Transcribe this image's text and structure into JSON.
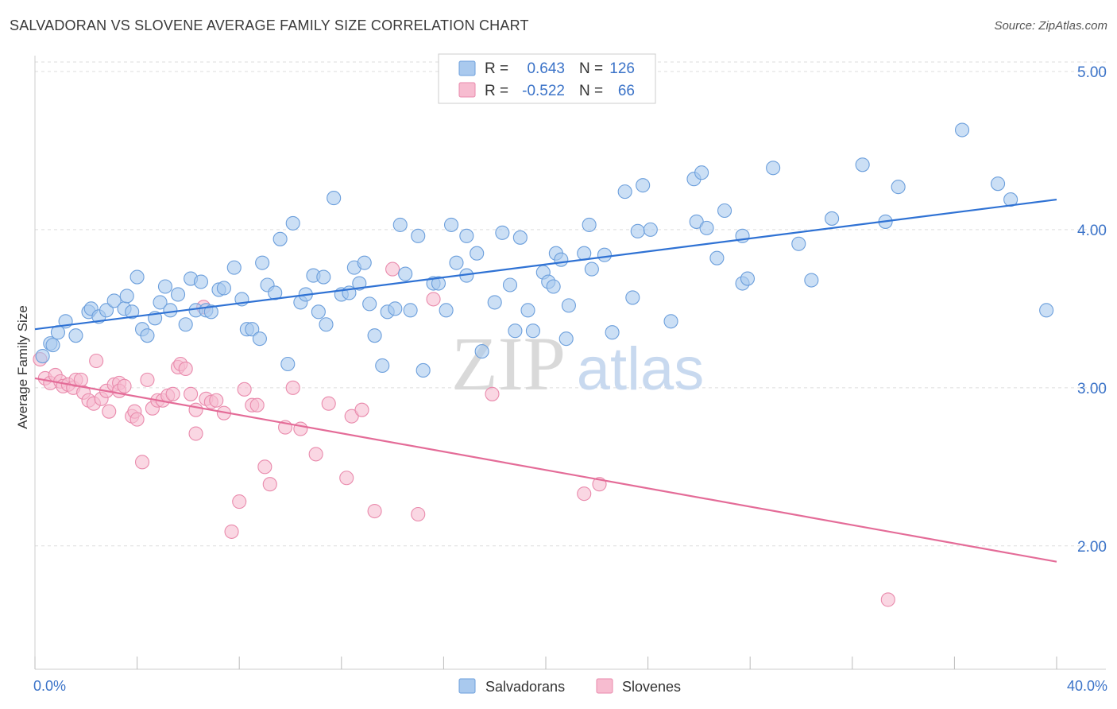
{
  "title": "SALVADORAN VS SLOVENE AVERAGE FAMILY SIZE CORRELATION CHART",
  "source": "Source: ZipAtlas.com",
  "watermark": {
    "zip": "ZIP",
    "atlas": "atlas"
  },
  "colors": {
    "blue_fill": "#a9c9ee",
    "blue_stroke": "#6c9fdc",
    "blue_line": "#2f72d4",
    "pink_fill": "#f7bcd0",
    "pink_stroke": "#e98aac",
    "pink_line": "#e46c98",
    "value_text": "#3b73c8",
    "grid": "#dddddd"
  },
  "stats_legend": {
    "rows": [
      {
        "r_label": "R =",
        "r_value": "0.643",
        "n_label": "N =",
        "n_value": "126"
      },
      {
        "r_label": "R =",
        "r_value": "-0.522",
        "n_label": "N =",
        "n_value": "66"
      }
    ]
  },
  "bottom_legend": [
    {
      "label": "Salvadorans"
    },
    {
      "label": "Slovenes"
    }
  ],
  "chart_data": {
    "type": "scatter",
    "title": "SALVADORAN VS SLOVENE AVERAGE FAMILY SIZE CORRELATION CHART",
    "xlabel": "",
    "ylabel": "Average Family Size",
    "xlim": [
      0,
      40
    ],
    "ylim": [
      1.22,
      5.1
    ],
    "x_tick_labels": [
      "0.0%",
      "40.0%"
    ],
    "y_ticks": [
      2.0,
      3.0,
      4.0,
      5.0
    ],
    "y_tick_labels": [
      "2.00",
      "3.00",
      "4.00",
      "5.00"
    ],
    "grid": true,
    "legend_position": "top-center",
    "series": [
      {
        "name": "Salvadorans",
        "color": "#a9c9ee",
        "trend": {
          "x": [
            0,
            40
          ],
          "y": [
            3.37,
            4.19
          ]
        },
        "points": [
          [
            0.3,
            3.2
          ],
          [
            0.6,
            3.28
          ],
          [
            0.7,
            3.27
          ],
          [
            0.9,
            3.35
          ],
          [
            1.2,
            3.42
          ],
          [
            1.6,
            3.33
          ],
          [
            2.1,
            3.48
          ],
          [
            2.2,
            3.5
          ],
          [
            2.5,
            3.45
          ],
          [
            2.8,
            3.49
          ],
          [
            3.1,
            3.55
          ],
          [
            3.5,
            3.5
          ],
          [
            3.6,
            3.58
          ],
          [
            3.8,
            3.48
          ],
          [
            4.0,
            3.7
          ],
          [
            4.2,
            3.37
          ],
          [
            4.4,
            3.33
          ],
          [
            4.7,
            3.44
          ],
          [
            4.9,
            3.54
          ],
          [
            5.1,
            3.64
          ],
          [
            5.3,
            3.49
          ],
          [
            5.6,
            3.59
          ],
          [
            5.9,
            3.4
          ],
          [
            6.1,
            3.69
          ],
          [
            6.3,
            3.49
          ],
          [
            6.5,
            3.67
          ],
          [
            6.7,
            3.49
          ],
          [
            6.9,
            3.48
          ],
          [
            7.2,
            3.62
          ],
          [
            7.4,
            3.63
          ],
          [
            7.8,
            3.76
          ],
          [
            8.1,
            3.56
          ],
          [
            8.3,
            3.37
          ],
          [
            8.5,
            3.37
          ],
          [
            8.8,
            3.31
          ],
          [
            8.9,
            3.79
          ],
          [
            9.1,
            3.65
          ],
          [
            9.4,
            3.6
          ],
          [
            9.6,
            3.94
          ],
          [
            9.9,
            3.15
          ],
          [
            10.1,
            4.04
          ],
          [
            10.4,
            3.54
          ],
          [
            10.6,
            3.59
          ],
          [
            10.9,
            3.71
          ],
          [
            11.1,
            3.48
          ],
          [
            11.3,
            3.7
          ],
          [
            11.4,
            3.4
          ],
          [
            11.7,
            4.2
          ],
          [
            12.0,
            3.59
          ],
          [
            12.3,
            3.6
          ],
          [
            12.5,
            3.76
          ],
          [
            12.7,
            3.66
          ],
          [
            12.9,
            3.79
          ],
          [
            13.1,
            3.53
          ],
          [
            13.3,
            3.33
          ],
          [
            13.6,
            3.14
          ],
          [
            13.8,
            3.48
          ],
          [
            14.1,
            3.5
          ],
          [
            14.3,
            4.03
          ],
          [
            14.5,
            3.72
          ],
          [
            14.7,
            3.49
          ],
          [
            15.0,
            3.96
          ],
          [
            15.2,
            3.11
          ],
          [
            15.6,
            3.66
          ],
          [
            15.8,
            3.66
          ],
          [
            16.1,
            3.49
          ],
          [
            16.3,
            4.03
          ],
          [
            16.5,
            3.79
          ],
          [
            16.9,
            3.96
          ],
          [
            16.9,
            3.71
          ],
          [
            17.3,
            3.85
          ],
          [
            17.5,
            3.23
          ],
          [
            18.0,
            3.54
          ],
          [
            18.3,
            3.98
          ],
          [
            18.6,
            3.65
          ],
          [
            18.8,
            3.36
          ],
          [
            19.0,
            3.95
          ],
          [
            19.3,
            3.49
          ],
          [
            19.5,
            3.36
          ],
          [
            19.9,
            3.73
          ],
          [
            20.1,
            3.67
          ],
          [
            20.3,
            3.64
          ],
          [
            20.4,
            3.85
          ],
          [
            20.6,
            3.81
          ],
          [
            20.8,
            3.31
          ],
          [
            20.9,
            3.52
          ],
          [
            21.5,
            3.85
          ],
          [
            21.7,
            4.03
          ],
          [
            21.8,
            3.75
          ],
          [
            22.3,
            3.84
          ],
          [
            22.6,
            3.35
          ],
          [
            23.1,
            4.24
          ],
          [
            23.4,
            3.57
          ],
          [
            23.6,
            3.99
          ],
          [
            23.8,
            4.28
          ],
          [
            24.1,
            4.0
          ],
          [
            24.9,
            3.42
          ],
          [
            25.8,
            4.32
          ],
          [
            25.9,
            4.05
          ],
          [
            26.1,
            4.36
          ],
          [
            26.3,
            4.01
          ],
          [
            26.7,
            3.82
          ],
          [
            27.0,
            4.12
          ],
          [
            27.7,
            3.66
          ],
          [
            27.7,
            3.96
          ],
          [
            27.9,
            3.69
          ],
          [
            28.9,
            4.39
          ],
          [
            29.9,
            3.91
          ],
          [
            30.4,
            3.68
          ],
          [
            31.2,
            4.07
          ],
          [
            32.4,
            4.41
          ],
          [
            33.3,
            4.05
          ],
          [
            33.8,
            4.27
          ],
          [
            36.3,
            4.63
          ],
          [
            37.7,
            4.29
          ],
          [
            38.2,
            4.19
          ],
          [
            39.6,
            3.49
          ]
        ]
      },
      {
        "name": "Slovenes",
        "color": "#f7bcd0",
        "trend": {
          "x": [
            0,
            40
          ],
          "y": [
            3.06,
            1.9
          ]
        },
        "points": [
          [
            0.2,
            3.18
          ],
          [
            0.4,
            3.06
          ],
          [
            0.6,
            3.03
          ],
          [
            0.8,
            3.08
          ],
          [
            1.0,
            3.04
          ],
          [
            1.1,
            3.01
          ],
          [
            1.3,
            3.02
          ],
          [
            1.5,
            3.0
          ],
          [
            1.6,
            3.05
          ],
          [
            1.8,
            3.05
          ],
          [
            1.9,
            2.97
          ],
          [
            2.1,
            2.92
          ],
          [
            2.3,
            2.9
          ],
          [
            2.4,
            3.17
          ],
          [
            2.6,
            2.93
          ],
          [
            2.8,
            2.98
          ],
          [
            2.9,
            2.85
          ],
          [
            3.1,
            3.02
          ],
          [
            3.3,
            3.03
          ],
          [
            3.3,
            2.98
          ],
          [
            3.5,
            3.01
          ],
          [
            3.8,
            2.82
          ],
          [
            3.9,
            2.85
          ],
          [
            4.0,
            2.8
          ],
          [
            4.2,
            2.53
          ],
          [
            4.4,
            3.05
          ],
          [
            4.6,
            2.87
          ],
          [
            4.8,
            2.92
          ],
          [
            5.0,
            2.92
          ],
          [
            5.2,
            2.95
          ],
          [
            5.4,
            2.96
          ],
          [
            5.6,
            3.13
          ],
          [
            5.7,
            3.15
          ],
          [
            5.9,
            3.12
          ],
          [
            6.1,
            2.96
          ],
          [
            6.3,
            2.86
          ],
          [
            6.3,
            2.71
          ],
          [
            6.6,
            3.51
          ],
          [
            6.7,
            2.93
          ],
          [
            6.9,
            2.91
          ],
          [
            7.1,
            2.92
          ],
          [
            7.4,
            2.84
          ],
          [
            7.7,
            2.09
          ],
          [
            8.0,
            2.28
          ],
          [
            8.2,
            2.99
          ],
          [
            8.5,
            2.89
          ],
          [
            8.7,
            2.89
          ],
          [
            9.0,
            2.5
          ],
          [
            9.2,
            2.39
          ],
          [
            9.8,
            2.75
          ],
          [
            10.1,
            3.0
          ],
          [
            10.4,
            2.74
          ],
          [
            11.0,
            2.58
          ],
          [
            11.5,
            2.9
          ],
          [
            12.2,
            2.43
          ],
          [
            12.4,
            2.82
          ],
          [
            12.8,
            2.86
          ],
          [
            13.3,
            2.22
          ],
          [
            14.0,
            3.75
          ],
          [
            15.0,
            2.2
          ],
          [
            15.6,
            3.56
          ],
          [
            17.9,
            2.96
          ],
          [
            21.5,
            2.33
          ],
          [
            22.1,
            2.39
          ],
          [
            33.4,
            1.66
          ]
        ]
      }
    ]
  }
}
